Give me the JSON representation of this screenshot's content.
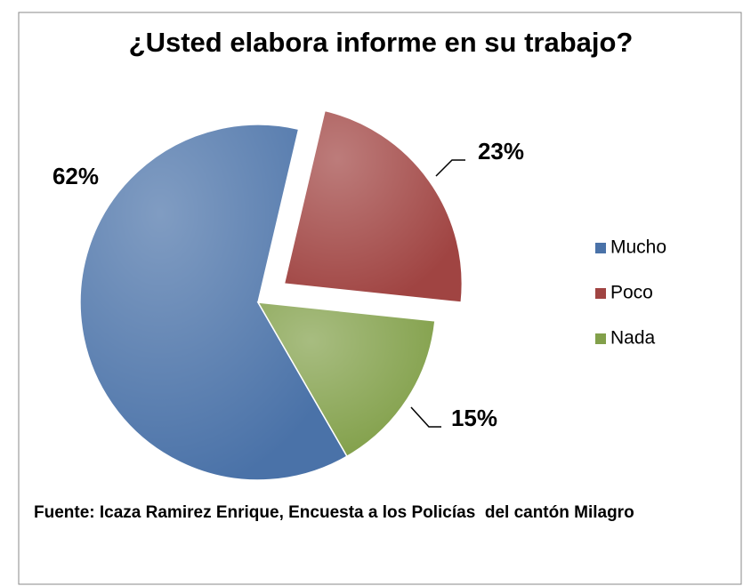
{
  "chart_data": {
    "type": "pie",
    "title": "¿Usted elabora informe en su trabajo?",
    "categories": [
      "Mucho",
      "Poco",
      "Nada"
    ],
    "values": [
      62,
      23,
      15
    ],
    "value_labels": [
      "62%",
      "23%",
      "15%"
    ],
    "colors": [
      "#4a72a8",
      "#a04442",
      "#82a04a"
    ],
    "exploded": "Poco",
    "legend": "right",
    "source": "Fuente: Icaza Ramirez Enrique, Encuesta a los Policías  del cantón Milagro"
  }
}
